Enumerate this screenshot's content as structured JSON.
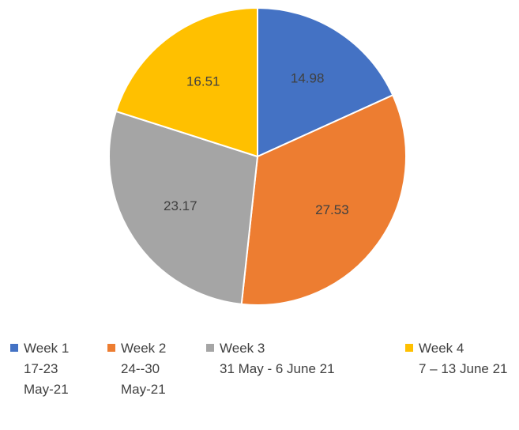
{
  "chart_data": {
    "type": "pie",
    "categories": [
      "Week 1\n17-23\nMay-21",
      "Week 2\n24--30\nMay-21",
      "Week 3\n31 May -  6 June 21",
      "Week 4\n7 – 13 June 21"
    ],
    "values": [
      14.98,
      27.53,
      23.17,
      16.51
    ],
    "colors": [
      "#4472c4",
      "#ed7d31",
      "#a5a5a5",
      "#ffc000"
    ],
    "legend": "bottom"
  }
}
